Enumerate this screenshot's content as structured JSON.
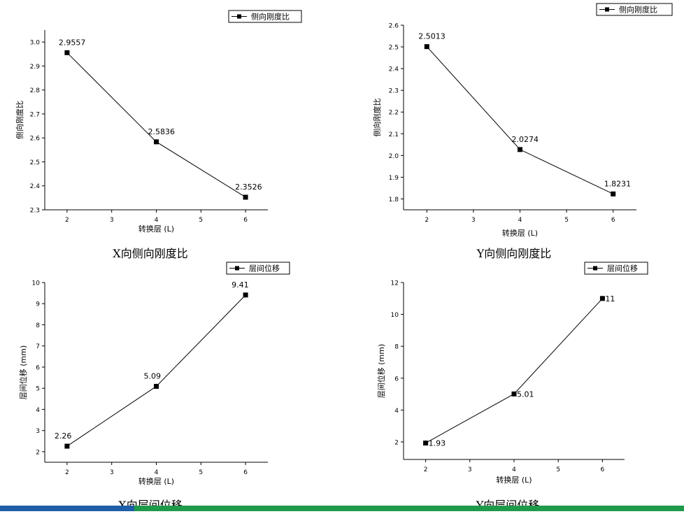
{
  "chart_data": [
    {
      "type": "line",
      "series": [
        {
          "name": "侧向刚度比",
          "x": [
            2,
            4,
            6
          ],
          "values": [
            2.9557,
            2.5836,
            2.3526
          ]
        }
      ],
      "data_labels": [
        "2.9557",
        "2.5836",
        "2.3526"
      ],
      "xlabel": "转换层 (L)",
      "ylabel": "侧向刚度比",
      "xticks": [
        "2",
        "3",
        "4",
        "5",
        "6"
      ],
      "yticks": [
        "2.3",
        "2.4",
        "2.5",
        "2.6",
        "2.7",
        "2.8",
        "2.9",
        "3.0"
      ],
      "xlim": [
        1.5,
        6.5
      ],
      "ylim": [
        2.3,
        3.05
      ],
      "caption": "X向侧向刚度比",
      "legend": "top-right",
      "grid": false
    },
    {
      "type": "line",
      "series": [
        {
          "name": "侧向刚度比",
          "x": [
            2,
            4,
            6
          ],
          "values": [
            2.5013,
            2.0274,
            1.8231
          ]
        }
      ],
      "data_labels": [
        "2.5013",
        "2.0274",
        "1.8231"
      ],
      "xlabel": "转换层 (L)",
      "ylabel": "侧向刚度比",
      "xticks": [
        "2",
        "3",
        "4",
        "5",
        "6"
      ],
      "yticks": [
        "1.8",
        "1.9",
        "2.0",
        "2.1",
        "2.2",
        "2.3",
        "2.4",
        "2.5",
        "2.6"
      ],
      "xlim": [
        1.5,
        6.5
      ],
      "ylim": [
        1.75,
        2.6
      ],
      "caption": "Y向侧向刚度比",
      "legend": "top-right",
      "grid": false
    },
    {
      "type": "line",
      "series": [
        {
          "name": "层间位移",
          "x": [
            2,
            4,
            6
          ],
          "values": [
            2.26,
            5.09,
            9.41
          ]
        }
      ],
      "data_labels": [
        "2.26",
        "5.09",
        "9.41"
      ],
      "xlabel": "转换层 (L)",
      "ylabel": "层间位移 (mm)",
      "xticks": [
        "2",
        "3",
        "4",
        "5",
        "6"
      ],
      "yticks": [
        "2",
        "3",
        "4",
        "5",
        "6",
        "7",
        "8",
        "9",
        "10"
      ],
      "xlim": [
        1.5,
        6.5
      ],
      "ylim": [
        1.5,
        10
      ],
      "caption": "X向层间位移",
      "legend": "top-right",
      "grid": false
    },
    {
      "type": "line",
      "series": [
        {
          "name": "层间位移",
          "x": [
            2,
            4,
            6
          ],
          "values": [
            1.93,
            5.01,
            11
          ]
        }
      ],
      "data_labels": [
        "1.93",
        "5.01",
        "11"
      ],
      "xlabel": "转换层 (L)",
      "ylabel": "层间位移 (mm)",
      "xticks": [
        "2",
        "3",
        "4",
        "5",
        "6"
      ],
      "yticks": [
        "2",
        "4",
        "6",
        "8",
        "10",
        "12"
      ],
      "xlim": [
        1.5,
        6.5
      ],
      "ylim": [
        0.9,
        12
      ],
      "caption": "Y向层间位移",
      "legend": "top-right",
      "grid": false
    }
  ]
}
